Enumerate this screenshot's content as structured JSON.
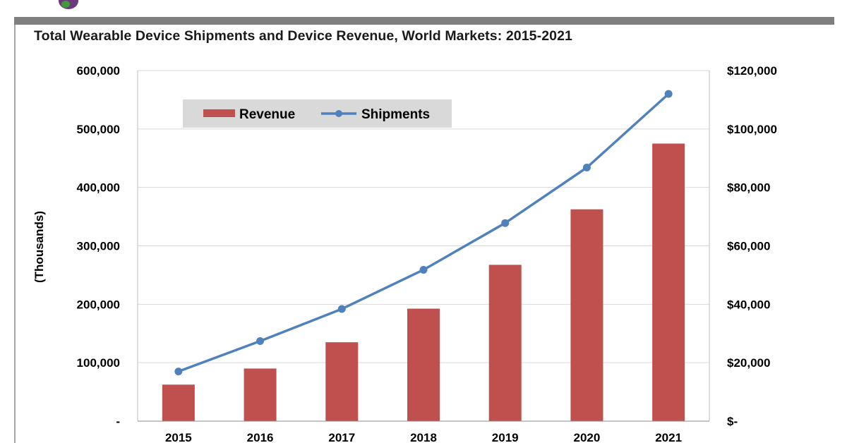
{
  "colors": {
    "revenue": "#c0504d",
    "shipments": "#4f81bd",
    "legend_bg": "#d9d9d9",
    "header_bar": "#7f7f7f",
    "gridline": "#d9d9d9",
    "logo_mark": "#6b3a7d"
  },
  "logo": {
    "icon": "company-logo-mark"
  },
  "chart_data": {
    "type": "bar",
    "title": "Total Wearable Device Shipments and Device Revenue, World Markets: 2015-2021",
    "ylabel": "(Thousands)",
    "categories": [
      "2015",
      "2016",
      "2017",
      "2018",
      "2019",
      "2020",
      "2021"
    ],
    "series": [
      {
        "name": "Revenue",
        "type": "bar",
        "axis": "right",
        "values": [
          12500,
          18000,
          27000,
          38500,
          53500,
          72500,
          95000
        ]
      },
      {
        "name": "Shipments",
        "type": "line",
        "axis": "left",
        "values": [
          85000,
          137000,
          192000,
          259000,
          339000,
          434000,
          560000
        ]
      }
    ],
    "left_axis": {
      "ylim": [
        0,
        600000
      ],
      "ticks": [
        0,
        100000,
        200000,
        300000,
        400000,
        500000,
        600000
      ],
      "tick_labels": [
        "-",
        "100,000",
        "200,000",
        "300,000",
        "400,000",
        "500,000",
        "600,000"
      ]
    },
    "right_axis": {
      "ylim": [
        0,
        120000
      ],
      "ticks": [
        0,
        20000,
        40000,
        60000,
        80000,
        100000,
        120000
      ],
      "tick_labels": [
        "$-",
        "$20,000",
        "$40,000",
        "$60,000",
        "$80,000",
        "$100,000",
        "$120,000"
      ]
    },
    "grid": true,
    "legend": {
      "placement": "top-left",
      "entries": [
        "Revenue",
        "Shipments"
      ]
    }
  }
}
